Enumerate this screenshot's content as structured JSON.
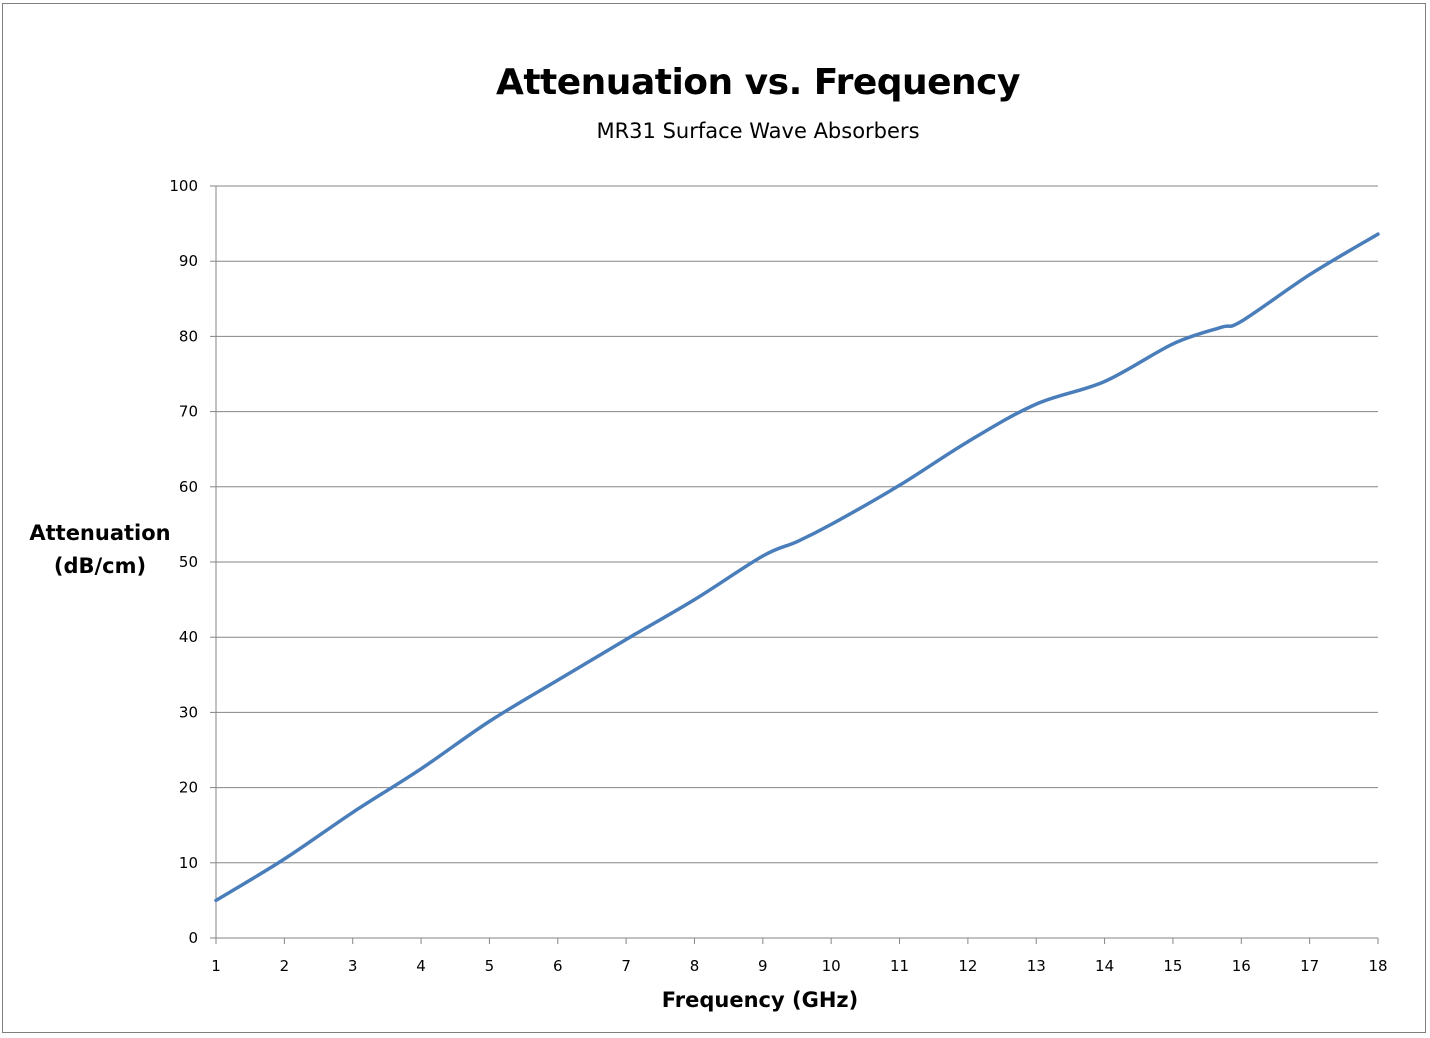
{
  "chart_data": {
    "type": "line",
    "title": "Attenuation vs. Frequency",
    "subtitle": "MR31 Surface  Wave Absorbers",
    "xlabel": "Frequency (GHz)",
    "ylabel_line1": "Attenuation",
    "ylabel_line2": "(dB/cm)",
    "xlim": [
      1,
      18
    ],
    "ylim": [
      0,
      100
    ],
    "x_ticks": [
      1,
      2,
      3,
      4,
      5,
      6,
      7,
      8,
      9,
      10,
      11,
      12,
      13,
      14,
      15,
      16,
      17,
      18
    ],
    "y_ticks": [
      0,
      10,
      20,
      30,
      40,
      50,
      60,
      70,
      80,
      90,
      100
    ],
    "grid": "horizontal",
    "legend": "none",
    "series": [
      {
        "color": "#4a7ebb",
        "x": [
          1,
          2,
          3,
          4,
          5,
          6,
          7,
          8,
          9,
          9.5,
          10,
          11,
          12,
          13,
          14,
          15,
          15.7,
          16,
          17,
          18
        ],
        "values": [
          5,
          10.5,
          16.7,
          22.5,
          28.8,
          34.3,
          39.7,
          45,
          50.8,
          52.7,
          55,
          60.2,
          66,
          71,
          74,
          79,
          81.2,
          82,
          88.2,
          93.6
        ]
      }
    ]
  }
}
